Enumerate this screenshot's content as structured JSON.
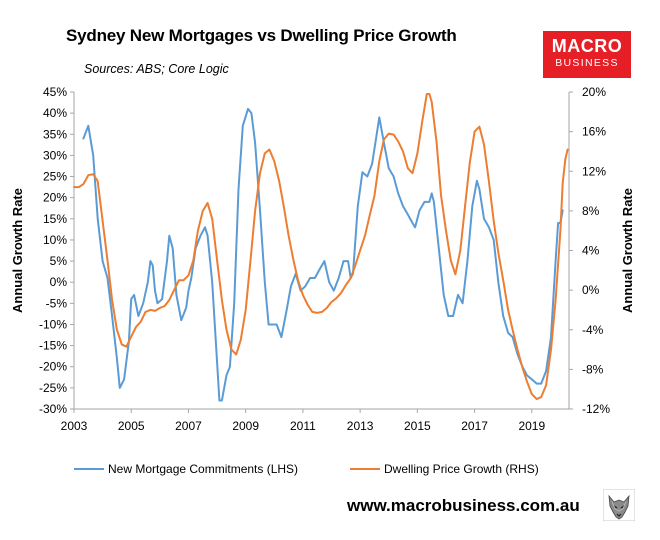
{
  "header": {
    "title": "Sydney New Mortgages vs Dwelling Price Growth",
    "sources": "Sources: ABS; Core Logic"
  },
  "brand": {
    "line1": "MACRO",
    "line2": "BUSINESS",
    "color": "#e61e26"
  },
  "footer": {
    "website": "www.macrobusiness.com.au",
    "logo_icon": "wolf-logo-icon"
  },
  "chart_data": {
    "type": "line",
    "xlabel": "",
    "ylabel_left": "Annual Growth Rate",
    "ylabel_right": "Annual Growth Rate",
    "xlim": [
      2003,
      2020.3
    ],
    "x_ticks": [
      "2003",
      "2005",
      "2007",
      "2009",
      "2011",
      "2013",
      "2015",
      "2017",
      "2019"
    ],
    "y_left_lim": [
      -0.3,
      0.45
    ],
    "y_left_ticks": [
      "-30%",
      "-25%",
      "-20%",
      "-15%",
      "-10%",
      "-5%",
      "0%",
      "5%",
      "10%",
      "15%",
      "20%",
      "25%",
      "30%",
      "35%",
      "40%",
      "45%"
    ],
    "y_right_lim": [
      -0.12,
      0.2
    ],
    "y_right_ticks": [
      "-12%",
      "-8%",
      "-4%",
      "0%",
      "4%",
      "8%",
      "12%",
      "16%",
      "20%"
    ],
    "grid": false,
    "legend_position": "bottom",
    "series": [
      {
        "name": "New Mortgage Commitments (LHS)",
        "axis": "left",
        "color": "#5b9bd5",
        "points": [
          [
            2003.33,
            0.34
          ],
          [
            2003.5,
            0.37
          ],
          [
            2003.67,
            0.3
          ],
          [
            2003.83,
            0.15
          ],
          [
            2004.0,
            0.05
          ],
          [
            2004.17,
            0.01
          ],
          [
            2004.33,
            -0.08
          ],
          [
            2004.5,
            -0.18
          ],
          [
            2004.6,
            -0.25
          ],
          [
            2004.75,
            -0.23
          ],
          [
            2004.92,
            -0.14
          ],
          [
            2005.0,
            -0.04
          ],
          [
            2005.1,
            -0.03
          ],
          [
            2005.25,
            -0.08
          ],
          [
            2005.42,
            -0.05
          ],
          [
            2005.58,
            0.0
          ],
          [
            2005.67,
            0.05
          ],
          [
            2005.75,
            0.04
          ],
          [
            2005.83,
            -0.02
          ],
          [
            2005.92,
            -0.05
          ],
          [
            2006.08,
            -0.04
          ],
          [
            2006.25,
            0.05
          ],
          [
            2006.33,
            0.11
          ],
          [
            2006.45,
            0.08
          ],
          [
            2006.58,
            -0.03
          ],
          [
            2006.75,
            -0.09
          ],
          [
            2006.92,
            -0.06
          ],
          [
            2007.0,
            -0.02
          ],
          [
            2007.1,
            0.01
          ],
          [
            2007.25,
            0.08
          ],
          [
            2007.42,
            0.11
          ],
          [
            2007.58,
            0.13
          ],
          [
            2007.67,
            0.11
          ],
          [
            2007.83,
            0.0
          ],
          [
            2008.0,
            -0.19
          ],
          [
            2008.08,
            -0.28
          ],
          [
            2008.17,
            -0.28
          ],
          [
            2008.33,
            -0.22
          ],
          [
            2008.45,
            -0.2
          ],
          [
            2008.6,
            -0.05
          ],
          [
            2008.75,
            0.22
          ],
          [
            2008.9,
            0.37
          ],
          [
            2009.08,
            0.41
          ],
          [
            2009.2,
            0.4
          ],
          [
            2009.33,
            0.33
          ],
          [
            2009.5,
            0.17
          ],
          [
            2009.67,
            0.0
          ],
          [
            2009.8,
            -0.1
          ],
          [
            2009.92,
            -0.1
          ],
          [
            2010.08,
            -0.1
          ],
          [
            2010.25,
            -0.13
          ],
          [
            2010.42,
            -0.07
          ],
          [
            2010.58,
            -0.01
          ],
          [
            2010.75,
            0.02
          ],
          [
            2010.92,
            -0.02
          ],
          [
            2011.08,
            -0.01
          ],
          [
            2011.25,
            0.01
          ],
          [
            2011.42,
            0.01
          ],
          [
            2011.58,
            0.03
          ],
          [
            2011.75,
            0.05
          ],
          [
            2011.92,
            0.0
          ],
          [
            2012.08,
            -0.02
          ],
          [
            2012.25,
            0.01
          ],
          [
            2012.42,
            0.05
          ],
          [
            2012.58,
            0.05
          ],
          [
            2012.67,
            0.01
          ],
          [
            2012.75,
            0.02
          ],
          [
            2012.92,
            0.18
          ],
          [
            2013.08,
            0.26
          ],
          [
            2013.25,
            0.25
          ],
          [
            2013.42,
            0.28
          ],
          [
            2013.58,
            0.35
          ],
          [
            2013.67,
            0.39
          ],
          [
            2013.83,
            0.33
          ],
          [
            2014.0,
            0.27
          ],
          [
            2014.17,
            0.25
          ],
          [
            2014.33,
            0.21
          ],
          [
            2014.5,
            0.18
          ],
          [
            2014.67,
            0.16
          ],
          [
            2014.83,
            0.14
          ],
          [
            2014.92,
            0.13
          ],
          [
            2015.08,
            0.17
          ],
          [
            2015.25,
            0.19
          ],
          [
            2015.42,
            0.19
          ],
          [
            2015.5,
            0.21
          ],
          [
            2015.58,
            0.19
          ],
          [
            2015.75,
            0.08
          ],
          [
            2015.92,
            -0.03
          ],
          [
            2016.08,
            -0.08
          ],
          [
            2016.25,
            -0.08
          ],
          [
            2016.42,
            -0.03
          ],
          [
            2016.58,
            -0.05
          ],
          [
            2016.75,
            0.05
          ],
          [
            2016.92,
            0.18
          ],
          [
            2017.08,
            0.24
          ],
          [
            2017.17,
            0.22
          ],
          [
            2017.33,
            0.15
          ],
          [
            2017.5,
            0.13
          ],
          [
            2017.67,
            0.1
          ],
          [
            2017.83,
            0.0
          ],
          [
            2018.0,
            -0.08
          ],
          [
            2018.17,
            -0.12
          ],
          [
            2018.33,
            -0.13
          ],
          [
            2018.5,
            -0.17
          ],
          [
            2018.67,
            -0.2
          ],
          [
            2018.83,
            -0.22
          ],
          [
            2019.0,
            -0.23
          ],
          [
            2019.17,
            -0.24
          ],
          [
            2019.33,
            -0.24
          ],
          [
            2019.5,
            -0.21
          ],
          [
            2019.67,
            -0.13
          ],
          [
            2019.83,
            0.05
          ],
          [
            2019.92,
            0.14
          ],
          [
            2020.0,
            0.14
          ],
          [
            2020.08,
            0.17
          ]
        ]
      },
      {
        "name": "Dwelling Price Growth (RHS)",
        "axis": "right",
        "color": "#ed7d31",
        "points": [
          [
            2003.0,
            0.104
          ],
          [
            2003.17,
            0.104
          ],
          [
            2003.33,
            0.107
          ],
          [
            2003.5,
            0.116
          ],
          [
            2003.67,
            0.117
          ],
          [
            2003.83,
            0.11
          ],
          [
            2004.0,
            0.07
          ],
          [
            2004.17,
            0.03
          ],
          [
            2004.33,
            -0.01
          ],
          [
            2004.5,
            -0.04
          ],
          [
            2004.67,
            -0.055
          ],
          [
            2004.83,
            -0.057
          ],
          [
            2005.0,
            -0.047
          ],
          [
            2005.17,
            -0.037
          ],
          [
            2005.33,
            -0.032
          ],
          [
            2005.5,
            -0.022
          ],
          [
            2005.67,
            -0.02
          ],
          [
            2005.83,
            -0.021
          ],
          [
            2006.0,
            -0.018
          ],
          [
            2006.17,
            -0.016
          ],
          [
            2006.33,
            -0.01
          ],
          [
            2006.5,
            0.0
          ],
          [
            2006.67,
            0.01
          ],
          [
            2006.83,
            0.01
          ],
          [
            2007.0,
            0.015
          ],
          [
            2007.17,
            0.03
          ],
          [
            2007.33,
            0.06
          ],
          [
            2007.5,
            0.08
          ],
          [
            2007.67,
            0.088
          ],
          [
            2007.83,
            0.072
          ],
          [
            2008.0,
            0.03
          ],
          [
            2008.17,
            -0.01
          ],
          [
            2008.33,
            -0.04
          ],
          [
            2008.5,
            -0.06
          ],
          [
            2008.67,
            -0.065
          ],
          [
            2008.83,
            -0.05
          ],
          [
            2009.0,
            -0.02
          ],
          [
            2009.17,
            0.03
          ],
          [
            2009.33,
            0.08
          ],
          [
            2009.5,
            0.118
          ],
          [
            2009.67,
            0.138
          ],
          [
            2009.83,
            0.142
          ],
          [
            2010.0,
            0.13
          ],
          [
            2010.17,
            0.11
          ],
          [
            2010.33,
            0.085
          ],
          [
            2010.5,
            0.055
          ],
          [
            2010.67,
            0.03
          ],
          [
            2010.83,
            0.01
          ],
          [
            2011.0,
            -0.005
          ],
          [
            2011.17,
            -0.015
          ],
          [
            2011.33,
            -0.022
          ],
          [
            2011.5,
            -0.023
          ],
          [
            2011.67,
            -0.022
          ],
          [
            2011.83,
            -0.018
          ],
          [
            2012.0,
            -0.012
          ],
          [
            2012.17,
            -0.008
          ],
          [
            2012.33,
            -0.003
          ],
          [
            2012.5,
            0.005
          ],
          [
            2012.67,
            0.012
          ],
          [
            2012.83,
            0.025
          ],
          [
            2013.0,
            0.04
          ],
          [
            2013.17,
            0.055
          ],
          [
            2013.33,
            0.075
          ],
          [
            2013.5,
            0.095
          ],
          [
            2013.67,
            0.13
          ],
          [
            2013.83,
            0.152
          ],
          [
            2014.0,
            0.158
          ],
          [
            2014.17,
            0.157
          ],
          [
            2014.33,
            0.15
          ],
          [
            2014.5,
            0.14
          ],
          [
            2014.67,
            0.123
          ],
          [
            2014.83,
            0.118
          ],
          [
            2015.0,
            0.138
          ],
          [
            2015.17,
            0.17
          ],
          [
            2015.33,
            0.198
          ],
          [
            2015.42,
            0.198
          ],
          [
            2015.5,
            0.19
          ],
          [
            2015.67,
            0.15
          ],
          [
            2015.83,
            0.095
          ],
          [
            2016.0,
            0.06
          ],
          [
            2016.17,
            0.03
          ],
          [
            2016.33,
            0.016
          ],
          [
            2016.5,
            0.04
          ],
          [
            2016.67,
            0.085
          ],
          [
            2016.83,
            0.128
          ],
          [
            2017.0,
            0.16
          ],
          [
            2017.17,
            0.165
          ],
          [
            2017.33,
            0.147
          ],
          [
            2017.5,
            0.11
          ],
          [
            2017.67,
            0.07
          ],
          [
            2017.83,
            0.038
          ],
          [
            2018.0,
            0.01
          ],
          [
            2018.17,
            -0.02
          ],
          [
            2018.33,
            -0.04
          ],
          [
            2018.5,
            -0.06
          ],
          [
            2018.67,
            -0.078
          ],
          [
            2018.83,
            -0.092
          ],
          [
            2019.0,
            -0.105
          ],
          [
            2019.17,
            -0.11
          ],
          [
            2019.33,
            -0.108
          ],
          [
            2019.5,
            -0.096
          ],
          [
            2019.67,
            -0.06
          ],
          [
            2019.83,
            -0.01
          ],
          [
            2020.0,
            0.06
          ],
          [
            2020.08,
            0.108
          ],
          [
            2020.17,
            0.132
          ],
          [
            2020.25,
            0.142
          ]
        ]
      }
    ]
  }
}
